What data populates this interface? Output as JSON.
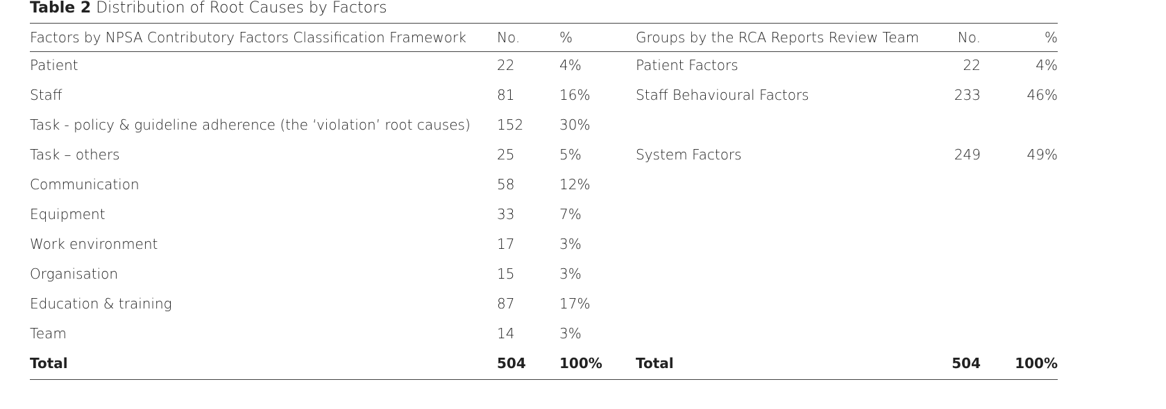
{
  "header": {
    "label": "Table 2",
    "title": "Distribution of Root Causes by Factors"
  },
  "table": {
    "columns": [
      "Factors by NPSA Contributory Factors Classification Framework",
      "No.",
      "%",
      "Groups by the RCA Reports Review Team",
      "No.",
      "%"
    ],
    "factors": [
      [
        "Patient",
        "22",
        "4%"
      ],
      [
        "Staff",
        "81",
        "16%"
      ],
      [
        "Task - policy & guideline adherence (the ‘violation’ root causes)",
        "152",
        "30%"
      ],
      [
        "Task – others",
        "25",
        "5%"
      ],
      [
        "Communication",
        "58",
        "12%"
      ],
      [
        "Equipment",
        "33",
        "7%"
      ],
      [
        "Work environment",
        "17",
        "3%"
      ],
      [
        "Organisation",
        "15",
        "3%"
      ],
      [
        "Education & training",
        "87",
        "17%"
      ],
      [
        "Team",
        "14",
        "3%"
      ]
    ],
    "groups": [
      [
        "Patient Factors",
        "22",
        "4%"
      ],
      [
        "Staff Behavioural Factors",
        "233",
        "46%"
      ],
      [
        "System Factors",
        "249",
        "49%"
      ]
    ],
    "total": [
      "Total",
      "504",
      "100%",
      "Total",
      "504",
      "100%"
    ]
  }
}
